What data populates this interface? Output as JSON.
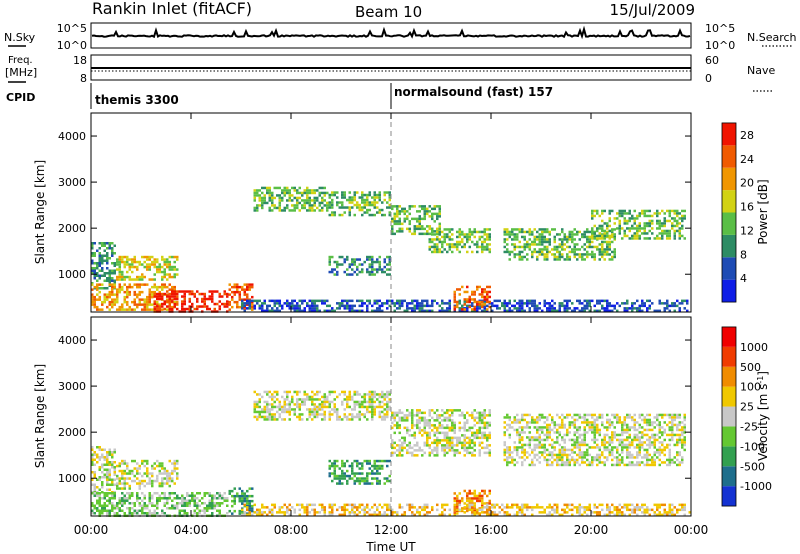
{
  "header": {
    "station": "Rankin Inlet (fitACF)",
    "beam": "Beam 10",
    "date": "15/Jul/2009"
  },
  "panels": {
    "nsky_label": "N.Sky",
    "nsearch_label": "N.Search",
    "nsky_ticks": [
      "10^5",
      "10^0"
    ],
    "nsearch_ticks": [
      "10^5",
      "10^0"
    ],
    "freq_label_1": "Freq.",
    "freq_label_2": "[MHz]",
    "freq_ticks": [
      "18",
      "8"
    ],
    "nave_label": "Nave",
    "nave_ticks": [
      "60",
      "0"
    ],
    "cpid_label": "CPID",
    "cpid_segments": [
      "themis 3300",
      "normalsound (fast) 157"
    ]
  },
  "chart_data": [
    {
      "type": "heatmap",
      "xlabel": "Time UT",
      "ylabel": "Slant Range [km]",
      "x_ticks": [
        "00:00",
        "04:00",
        "08:00",
        "12:00",
        "16:00",
        "20:00",
        "00:00"
      ],
      "xlim": [
        0,
        24
      ],
      "y_ticks": [
        "1000",
        "2000",
        "3000",
        "4000"
      ],
      "ylim": [
        180,
        4500
      ],
      "colorbar_label": "Power [dB]",
      "colorbar_ticks": [
        "4",
        "8",
        "12",
        "16",
        "20",
        "24",
        "28"
      ],
      "colorbar_range": [
        0,
        30
      ],
      "colors": [
        "#0f1ee6",
        "#1e4bb4",
        "#2d8c64",
        "#5abe46",
        "#d2d214",
        "#f09600",
        "#f05a00",
        "#f01400"
      ],
      "regions": [
        {
          "t0": 0.0,
          "t1": 1.0,
          "r0": 700,
          "r1": 1700,
          "level": 2
        },
        {
          "t0": 0.0,
          "t1": 3.5,
          "r0": 250,
          "r1": 800,
          "level": 5
        },
        {
          "t0": 1.0,
          "t1": 3.5,
          "r0": 900,
          "r1": 1400,
          "level": 4
        },
        {
          "t0": 2.5,
          "t1": 5.5,
          "r0": 200,
          "r1": 650,
          "level": 7
        },
        {
          "t0": 5.5,
          "t1": 6.5,
          "r0": 250,
          "r1": 800,
          "level": 6
        },
        {
          "t0": 6.0,
          "t1": 24.0,
          "r0": 200,
          "r1": 450,
          "level": 1
        },
        {
          "t0": 6.5,
          "t1": 9.5,
          "r0": 2400,
          "r1": 2900,
          "level": 3
        },
        {
          "t0": 9.5,
          "t1": 12.0,
          "r0": 2300,
          "r1": 2800,
          "level": 3
        },
        {
          "t0": 12.0,
          "t1": 14.0,
          "r0": 1900,
          "r1": 2500,
          "level": 3
        },
        {
          "t0": 13.5,
          "t1": 16.0,
          "r0": 1500,
          "r1": 2000,
          "level": 3
        },
        {
          "t0": 16.5,
          "t1": 21.0,
          "r0": 1300,
          "r1": 2000,
          "level": 3
        },
        {
          "t0": 20.0,
          "t1": 23.8,
          "r0": 1800,
          "r1": 2400,
          "level": 3
        },
        {
          "t0": 14.5,
          "t1": 16.0,
          "r0": 250,
          "r1": 750,
          "level": 6
        },
        {
          "t0": 9.5,
          "t1": 12.0,
          "r0": 1000,
          "r1": 1400,
          "level": 2
        }
      ]
    },
    {
      "type": "heatmap",
      "xlabel": "Time UT",
      "ylabel": "Slant Range [km]",
      "x_ticks": [
        "00:00",
        "04:00",
        "08:00",
        "12:00",
        "16:00",
        "20:00",
        "00:00"
      ],
      "xlim": [
        0,
        24
      ],
      "y_ticks": [
        "1000",
        "2000",
        "3000",
        "4000"
      ],
      "ylim": [
        180,
        4500
      ],
      "colorbar_label": "Velocity [m s^-1]",
      "colorbar_ticks": [
        "1000",
        "500",
        "100",
        "25",
        "-25",
        "-100",
        "-500",
        "-1000"
      ],
      "colors": [
        "#1432d2",
        "#1e6e8c",
        "#32a050",
        "#64c832",
        "#c8c8c8",
        "#f0c800",
        "#f08c00",
        "#f03c00",
        "#f00000"
      ],
      "regions": [
        {
          "t0": 0.0,
          "t1": 1.0,
          "r0": 700,
          "r1": 1700,
          "level": 4
        },
        {
          "t0": 0.0,
          "t1": 5.5,
          "r0": 200,
          "r1": 700,
          "level": 3
        },
        {
          "t0": 1.0,
          "t1": 3.5,
          "r0": 800,
          "r1": 1400,
          "level": 4
        },
        {
          "t0": 5.5,
          "t1": 6.5,
          "r0": 250,
          "r1": 800,
          "level": 2
        },
        {
          "t0": 6.5,
          "t1": 12.0,
          "r0": 2300,
          "r1": 2900,
          "level": 4
        },
        {
          "t0": 12.0,
          "t1": 16.0,
          "r0": 1500,
          "r1": 2500,
          "level": 4
        },
        {
          "t0": 16.5,
          "t1": 23.8,
          "r0": 1300,
          "r1": 2400,
          "level": 4
        },
        {
          "t0": 14.5,
          "t1": 16.0,
          "r0": 250,
          "r1": 750,
          "level": 6
        },
        {
          "t0": 6.0,
          "t1": 24.0,
          "r0": 200,
          "r1": 450,
          "level": 5
        },
        {
          "t0": 9.5,
          "t1": 12.0,
          "r0": 900,
          "r1": 1400,
          "level": 2
        }
      ]
    }
  ]
}
